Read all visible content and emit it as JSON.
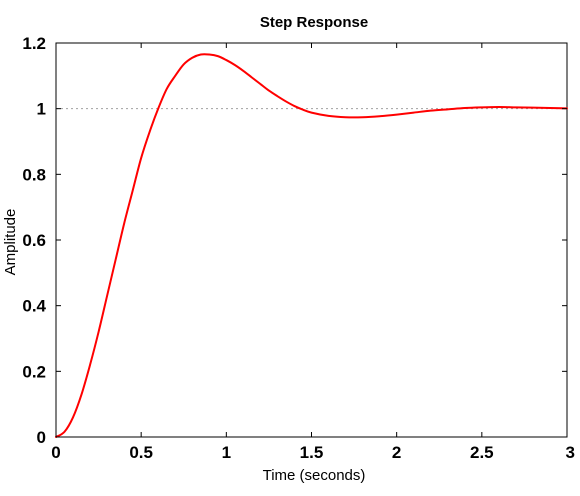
{
  "chart_data": {
    "type": "line",
    "title": "Step Response",
    "xlabel": "Time (seconds)",
    "ylabel": "Amplitude",
    "xlim": [
      0,
      3
    ],
    "ylim": [
      0,
      1.2
    ],
    "xticks": [
      0,
      0.5,
      1,
      1.5,
      2,
      2.5,
      3
    ],
    "xtick_labels": [
      "0",
      "0.5",
      "1",
      "1.5",
      "2",
      "2.5",
      "3"
    ],
    "yticks": [
      0,
      0.2,
      0.4,
      0.6,
      0.8,
      1,
      1.2
    ],
    "ytick_labels": [
      "0",
      "0.2",
      "0.4",
      "0.6",
      "0.8",
      "1",
      "1.2"
    ],
    "grid": false,
    "reference_line": {
      "y": 1,
      "color": "#a0a0a0",
      "style": "dotted"
    },
    "series": [
      {
        "color": "#ff0000",
        "x": [
          0,
          0.05,
          0.1,
          0.15,
          0.2,
          0.25,
          0.3,
          0.35,
          0.4,
          0.45,
          0.5,
          0.55,
          0.6,
          0.65,
          0.7,
          0.75,
          0.8,
          0.85,
          0.9,
          0.95,
          1.0,
          1.05,
          1.1,
          1.15,
          1.2,
          1.25,
          1.3,
          1.35,
          1.4,
          1.45,
          1.5,
          1.6,
          1.7,
          1.8,
          1.9,
          2.0,
          2.1,
          2.2,
          2.3,
          2.4,
          2.5,
          2.6,
          2.7,
          2.8,
          2.9,
          3.0
        ],
        "y": [
          0,
          0.016,
          0.06,
          0.13,
          0.22,
          0.32,
          0.43,
          0.54,
          0.65,
          0.75,
          0.85,
          0.93,
          1.0,
          1.06,
          1.1,
          1.135,
          1.155,
          1.165,
          1.165,
          1.16,
          1.148,
          1.133,
          1.115,
          1.095,
          1.075,
          1.055,
          1.038,
          1.022,
          1.008,
          0.997,
          0.988,
          0.978,
          0.974,
          0.974,
          0.977,
          0.982,
          0.988,
          0.994,
          0.998,
          1.002,
          1.004,
          1.005,
          1.004,
          1.003,
          1.002,
          1.001
        ]
      }
    ]
  }
}
